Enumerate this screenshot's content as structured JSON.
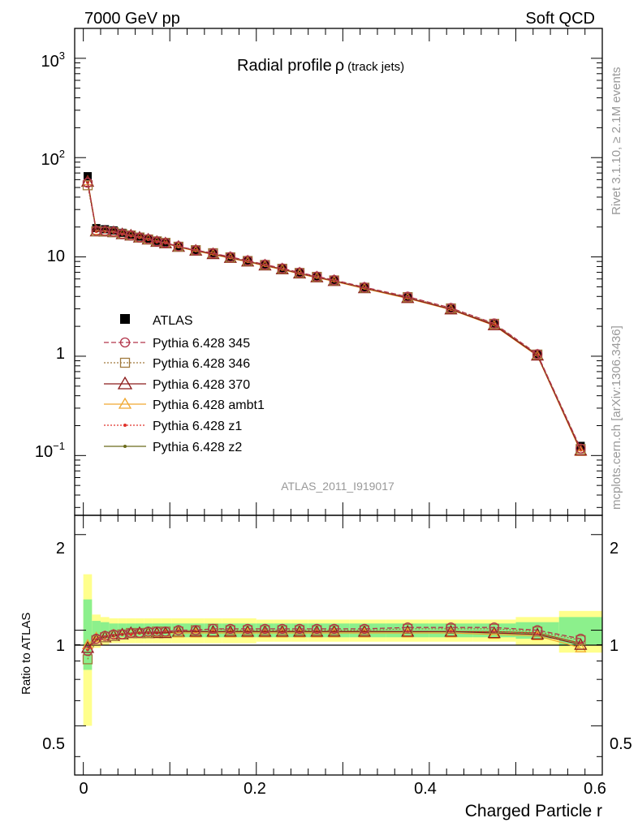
{
  "header": {
    "left": "7000 GeV pp",
    "right": "Soft QCD"
  },
  "side": {
    "rivet": "Rivet 3.1.10, ≥ 2.1M events",
    "url": "mcplots.cern.ch [arXiv:1306.3436]"
  },
  "main": {
    "title": "Radial profile",
    "title_symbol": "ρ",
    "title_suffix": "(track jets)",
    "analysis": "ATLAS_2011_I919017",
    "y_ticks": [
      {
        "base": "10",
        "exp": "3",
        "value": 1000
      },
      {
        "base": "10",
        "exp": "2",
        "value": 100
      },
      {
        "base": "10",
        "exp": "",
        "value": 10
      },
      {
        "base": "1",
        "exp": "",
        "value": 1
      },
      {
        "base": "10",
        "exp": "−1",
        "value": 0.1
      }
    ]
  },
  "ratio": {
    "ylabel": "Ratio to ATLAS",
    "y_ticks": [
      "0.5",
      "1",
      "2"
    ]
  },
  "xaxis": {
    "label": "Charged Particle r",
    "ticks": [
      "0",
      "0.2",
      "0.4",
      "0.6"
    ]
  },
  "legend": {
    "atlas": "ATLAS",
    "p345": "Pythia 6.428 345",
    "p346": "Pythia 6.428 346",
    "p370": "Pythia 6.428 370",
    "ambt1": "Pythia 6.428 ambt1",
    "z1": "Pythia 6.428 z1",
    "z2": "Pythia 6.428 z2"
  },
  "chart_data": {
    "type": "line",
    "title": "Radial profile ρ (track jets)",
    "xlabel": "Charged Particle r",
    "ylabel": "",
    "xlim": [
      -0.01,
      0.6
    ],
    "ylim": [
      0.025,
      2000
    ],
    "yscale": "log",
    "ratio_ylabel": "Ratio to ATLAS",
    "ratio_ylim": [
      0.35,
      2.3
    ],
    "ratio_yscale": "log",
    "x": [
      0.005,
      0.015,
      0.025,
      0.035,
      0.045,
      0.055,
      0.065,
      0.075,
      0.085,
      0.095,
      0.11,
      0.13,
      0.15,
      0.17,
      0.19,
      0.21,
      0.23,
      0.25,
      0.27,
      0.29,
      0.325,
      0.375,
      0.425,
      0.475,
      0.525,
      0.575
    ],
    "data": {
      "name": "ATLAS",
      "values": [
        65,
        19.5,
        19,
        18.5,
        17.5,
        16.8,
        16,
        15.3,
        14.5,
        14,
        12.8,
        11.7,
        10.8,
        9.9,
        9.1,
        8.3,
        7.6,
        6.9,
        6.3,
        5.8,
        4.9,
        3.9,
        3.0,
        2.1,
        1.05,
        0.125
      ],
      "band_inner": [
        0.25,
        0.07,
        0.06,
        0.05,
        0.05,
        0.05,
        0.05,
        0.05,
        0.05,
        0.05,
        0.05,
        0.05,
        0.05,
        0.05,
        0.05,
        0.05,
        0.05,
        0.05,
        0.05,
        0.05,
        0.05,
        0.05,
        0.05,
        0.05,
        0.06,
        0.1
      ],
      "band_outer": [
        0.5,
        0.12,
        0.1,
        0.09,
        0.09,
        0.09,
        0.09,
        0.09,
        0.09,
        0.09,
        0.09,
        0.09,
        0.09,
        0.09,
        0.09,
        0.08,
        0.08,
        0.08,
        0.08,
        0.08,
        0.08,
        0.08,
        0.08,
        0.08,
        0.1,
        0.15
      ]
    },
    "series": [
      {
        "name": "Pythia 6.428 345",
        "color": "#b2344a",
        "marker": "circle",
        "dash": "6,3",
        "ratio": [
          0.86,
          0.94,
          0.96,
          0.97,
          0.97,
          0.98,
          0.98,
          0.99,
          0.99,
          0.99,
          1.0,
          1.0,
          1.01,
          1.01,
          1.01,
          1.01,
          1.01,
          1.01,
          1.01,
          1.01,
          1.01,
          1.02,
          1.02,
          1.02,
          1.0,
          0.94
        ]
      },
      {
        "name": "Pythia 6.428 346",
        "color": "#a0793c",
        "marker": "square",
        "dash": "2,2",
        "ratio": [
          0.81,
          0.93,
          0.95,
          0.96,
          0.97,
          0.98,
          0.98,
          0.98,
          0.99,
          0.99,
          0.99,
          1.0,
          1.01,
          1.0,
          1.0,
          1.0,
          1.0,
          1.0,
          1.0,
          1.0,
          1.0,
          1.01,
          1.01,
          1.01,
          0.99,
          0.93
        ]
      },
      {
        "name": "Pythia 6.428 370",
        "color": "#8b1a1a",
        "marker": "triangle",
        "dash": "",
        "ratio": [
          0.88,
          0.93,
          0.95,
          0.96,
          0.97,
          0.98,
          0.98,
          0.98,
          0.98,
          0.98,
          0.99,
          0.99,
          0.99,
          0.99,
          0.99,
          0.99,
          0.99,
          0.99,
          0.99,
          0.99,
          0.99,
          0.99,
          0.99,
          0.98,
          0.97,
          0.9
        ]
      },
      {
        "name": "Pythia 6.428 ambt1",
        "color": "#f0a830",
        "marker": "triangle",
        "dash": "",
        "ratio": [
          0.9,
          0.95,
          0.96,
          0.97,
          0.97,
          0.98,
          0.98,
          0.98,
          0.98,
          0.98,
          0.98,
          0.98,
          0.98,
          0.98,
          0.98,
          0.98,
          0.98,
          0.98,
          0.98,
          0.98,
          0.98,
          0.98,
          0.98,
          0.97,
          0.96,
          0.88
        ]
      },
      {
        "name": "Pythia 6.428 z1",
        "color": "#e0302a",
        "marker": "dot",
        "dash": "2,2",
        "ratio": [
          0.87,
          0.93,
          0.95,
          0.96,
          0.97,
          0.97,
          0.98,
          0.98,
          0.98,
          0.99,
          0.99,
          0.99,
          0.99,
          0.99,
          0.99,
          0.99,
          0.99,
          0.99,
          0.99,
          0.99,
          0.99,
          0.99,
          0.99,
          0.99,
          0.98,
          0.91
        ]
      },
      {
        "name": "Pythia 6.428 z2",
        "color": "#6b6b1a",
        "marker": "dot",
        "dash": "",
        "ratio": [
          0.87,
          0.93,
          0.95,
          0.96,
          0.97,
          0.97,
          0.98,
          0.98,
          0.98,
          0.99,
          0.99,
          0.99,
          0.99,
          0.99,
          0.99,
          0.99,
          0.99,
          0.99,
          0.99,
          0.99,
          0.99,
          0.99,
          0.99,
          0.99,
          0.98,
          0.91
        ]
      }
    ]
  }
}
